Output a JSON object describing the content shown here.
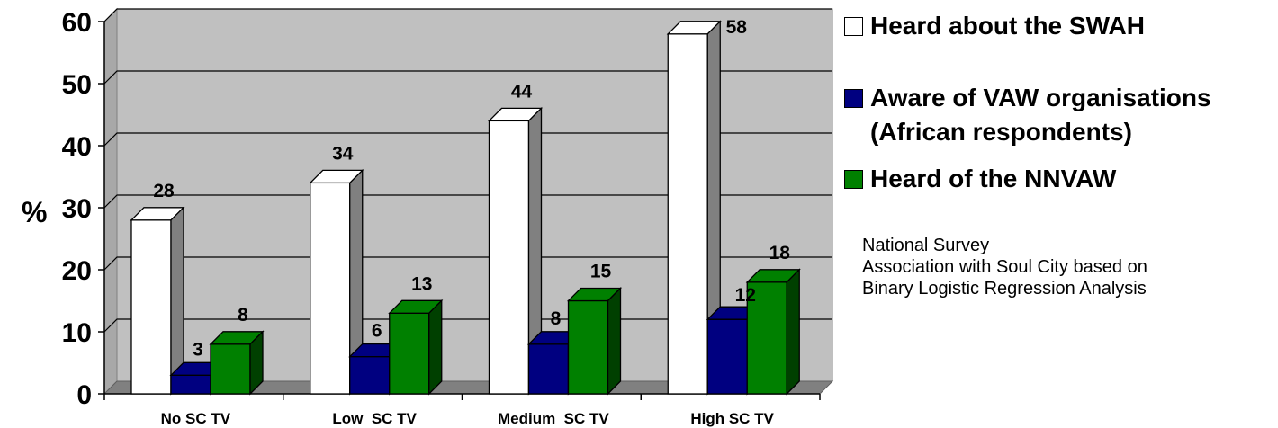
{
  "chart_data": {
    "type": "bar",
    "title": "",
    "xlabel": "",
    "ylabel": "%",
    "ylim": [
      0,
      60
    ],
    "yticks": [
      "0",
      "10",
      "20",
      "30",
      "40",
      "50",
      "60"
    ],
    "grid": true,
    "three_d": true,
    "legend_position": "right",
    "categories": [
      "No SC TV",
      "Low  SC TV",
      "Medium  SC TV",
      "High SC TV"
    ],
    "series": [
      {
        "name": "Heard about the SWAH",
        "color": "#ffffff",
        "values": [
          28,
          34,
          44,
          58
        ],
        "labels": [
          "28",
          "34",
          "44",
          "58"
        ]
      },
      {
        "name": "Aware of VAW organisations (African respondents)",
        "color": "#000080",
        "values": [
          3,
          6,
          8,
          12
        ],
        "labels": [
          "3",
          "6",
          "8",
          "12"
        ]
      },
      {
        "name": "Heard of the NNVAW",
        "color": "#008000",
        "values": [
          8,
          13,
          15,
          18
        ],
        "labels": [
          "8",
          "13",
          "15",
          "18"
        ]
      }
    ]
  },
  "legend": {
    "items": [
      {
        "line1": "Heard about the SWAH",
        "line2": ""
      },
      {
        "line1": "Aware of VAW organisations",
        "line2": "(African respondents)"
      },
      {
        "line1": "Heard of the NNVAW",
        "line2": ""
      }
    ]
  },
  "note": {
    "line1": "National Survey",
    "line2": "Association with Soul City based on",
    "line3": "Binary Logistic Regression Analysis"
  }
}
